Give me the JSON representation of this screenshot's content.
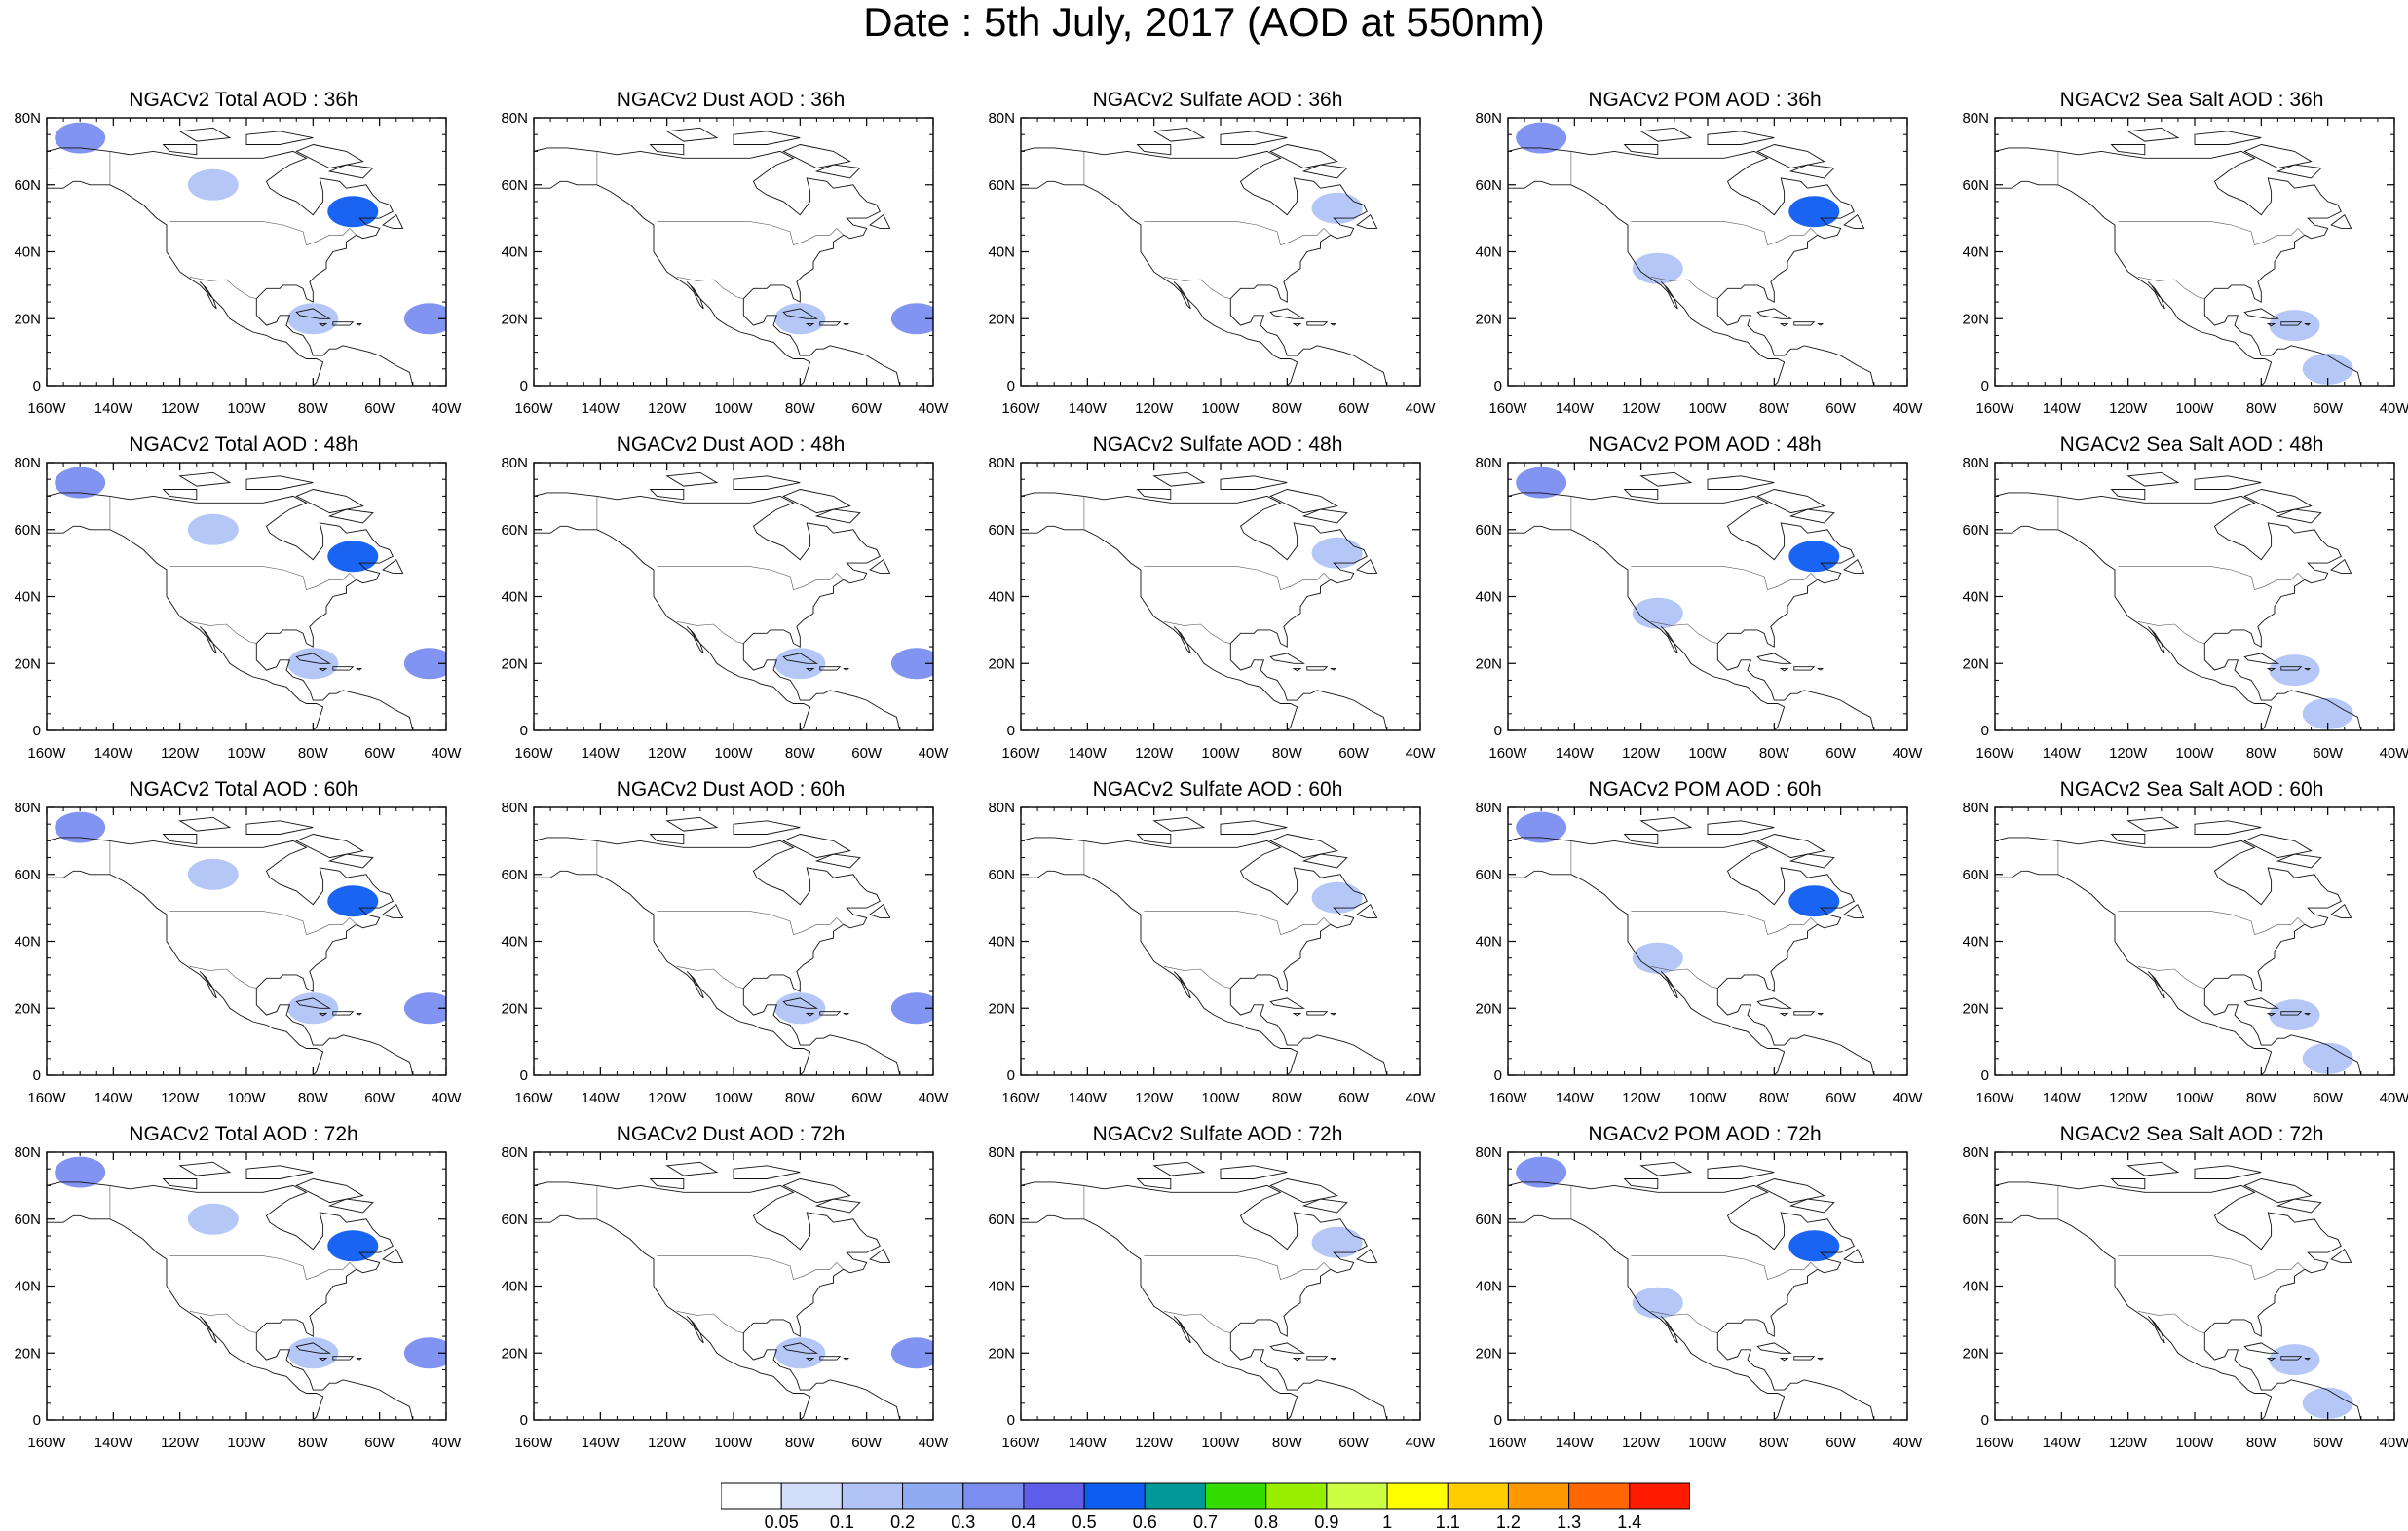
{
  "title": "Date : 5th July, 2017 (AOD at 550nm)",
  "lat_labels": [
    "80N",
    "60N",
    "40N",
    "20N",
    "0"
  ],
  "lon_labels": [
    "160W",
    "140W",
    "120W",
    "100W",
    "80W",
    "60W",
    "40W"
  ],
  "map_extent": {
    "lon": [
      -160,
      -40
    ],
    "lat": [
      0,
      80
    ]
  },
  "panels": [
    {
      "title": "NGACv2 Total AOD : 36h",
      "species": "total",
      "hour": 36
    },
    {
      "title": "NGACv2 Dust AOD : 36h",
      "species": "dust",
      "hour": 36
    },
    {
      "title": "NGACv2 Sulfate AOD : 36h",
      "species": "sulfate",
      "hour": 36
    },
    {
      "title": "NGACv2 POM AOD : 36h",
      "species": "pom",
      "hour": 36
    },
    {
      "title": "NGACv2 Sea Salt AOD : 36h",
      "species": "seasalt",
      "hour": 36
    },
    {
      "title": "NGACv2 Total AOD : 48h",
      "species": "total",
      "hour": 48
    },
    {
      "title": "NGACv2 Dust AOD : 48h",
      "species": "dust",
      "hour": 48
    },
    {
      "title": "NGACv2 Sulfate AOD : 48h",
      "species": "sulfate",
      "hour": 48
    },
    {
      "title": "NGACv2 POM AOD : 48h",
      "species": "pom",
      "hour": 48
    },
    {
      "title": "NGACv2 Sea Salt AOD : 48h",
      "species": "seasalt",
      "hour": 48
    },
    {
      "title": "NGACv2 Total AOD : 60h",
      "species": "total",
      "hour": 60
    },
    {
      "title": "NGACv2 Dust AOD : 60h",
      "species": "dust",
      "hour": 60
    },
    {
      "title": "NGACv2 Sulfate AOD : 60h",
      "species": "sulfate",
      "hour": 60
    },
    {
      "title": "NGACv2 POM AOD : 60h",
      "species": "pom",
      "hour": 60
    },
    {
      "title": "NGACv2 Sea Salt AOD : 60h",
      "species": "seasalt",
      "hour": 60
    },
    {
      "title": "NGACv2 Total AOD : 72h",
      "species": "total",
      "hour": 72
    },
    {
      "title": "NGACv2 Dust AOD : 72h",
      "species": "dust",
      "hour": 72
    },
    {
      "title": "NGACv2 Sulfate AOD : 72h",
      "species": "sulfate",
      "hour": 72
    },
    {
      "title": "NGACv2 POM AOD : 72h",
      "species": "pom",
      "hour": 72
    },
    {
      "title": "NGACv2 Sea Salt  AOD : 72h",
      "species": "seasalt",
      "hour": 72
    }
  ],
  "colorbar": {
    "labels": [
      "0.05",
      "0.1",
      "0.2",
      "0.3",
      "0.4",
      "0.5",
      "0.6",
      "0.7",
      "0.8",
      "0.9",
      "1",
      "1.1",
      "1.2",
      "1.3",
      "1.4"
    ],
    "colors": [
      "#ffffff",
      "#d3defa",
      "#b0c4f6",
      "#8eabf3",
      "#7b8ef0",
      "#5e5eea",
      "#0d5cf2",
      "#009999",
      "#33dd00",
      "#99ee00",
      "#ccff44",
      "#ffff00",
      "#ffcc00",
      "#ff9900",
      "#ff6600",
      "#ff1a00"
    ]
  },
  "plume_fields": {
    "total": [
      {
        "lon": -150,
        "lat": 74,
        "v": 0.3
      },
      {
        "lon": -110,
        "lat": 60,
        "v": 0.15
      },
      {
        "lon": -68,
        "lat": 52,
        "v": 0.5
      },
      {
        "lon": -45,
        "lat": 20,
        "v": 0.35
      },
      {
        "lon": -80,
        "lat": 20,
        "v": 0.15
      }
    ],
    "dust": [
      {
        "lon": -45,
        "lat": 20,
        "v": 0.3
      },
      {
        "lon": -80,
        "lat": 20,
        "v": 0.15
      }
    ],
    "sulfate": [
      {
        "lon": -65,
        "lat": 53,
        "v": 0.1
      }
    ],
    "pom": [
      {
        "lon": -150,
        "lat": 74,
        "v": 0.3
      },
      {
        "lon": -68,
        "lat": 52,
        "v": 0.5
      },
      {
        "lon": -115,
        "lat": 35,
        "v": 0.15
      }
    ],
    "seasalt": [
      {
        "lon": -70,
        "lat": 18,
        "v": 0.12
      },
      {
        "lon": -60,
        "lat": 5,
        "v": 0.12
      }
    ]
  }
}
